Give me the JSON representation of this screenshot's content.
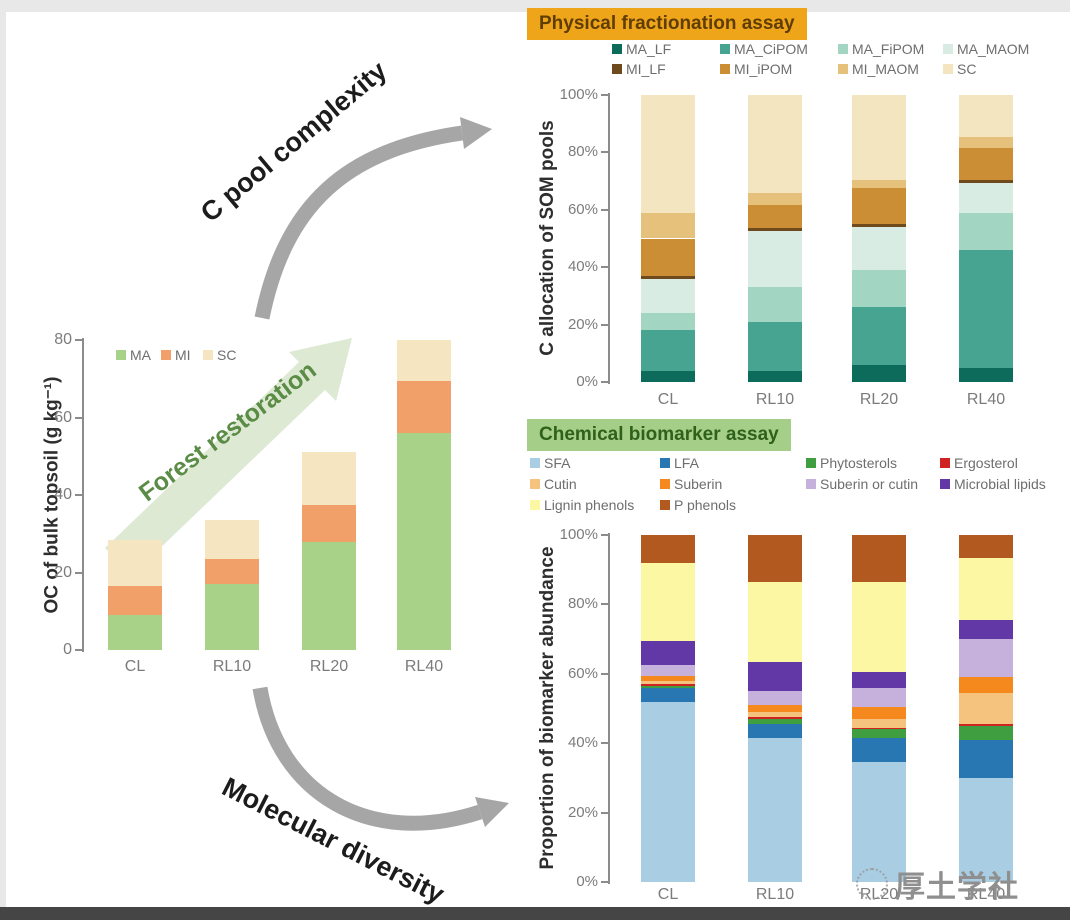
{
  "page": {
    "watermark_text": "厚土学社"
  },
  "annotations": {
    "top_arrow_label": "C pool complexity",
    "restoration_arrow_label": "Forest restoration",
    "bottom_arrow_label": "Molecular diversity"
  },
  "panels": {
    "physical_header": "Physical fractionation assay",
    "chemical_header": "Chemical biomarker assay"
  },
  "colors": {
    "physical_header_bg": "#efa519",
    "physical_header_text": "#5f3d05",
    "chemical_header_bg": "#a5cf88",
    "chemical_header_text": "#2f611c",
    "arrow_grey": "#a6a6a6",
    "restoration_arrow_fill": "#dbe7d0",
    "restoration_text": "#5b8c46",
    "axis": "#8c8c8c",
    "tick_text": "#7c7c7c",
    "watermark": "#8f8f8f"
  },
  "chart_data": [
    {
      "id": "oc_bulk_topsoil",
      "type": "bar",
      "stacked": true,
      "ylabel": "OC of bulk topsoil (g kg⁻¹)",
      "ylim": [
        0,
        80
      ],
      "yticks": [
        "0",
        "20",
        "40",
        "60",
        "80"
      ],
      "categories": [
        "CL",
        "RL10",
        "RL20",
        "RL40"
      ],
      "legend_position": "top-left-inside",
      "series": [
        {
          "name": "MA",
          "color": "#a8d287",
          "values": [
            9,
            17,
            28,
            56
          ]
        },
        {
          "name": "MI",
          "color": "#f2a06a",
          "values": [
            7.5,
            6.5,
            9.5,
            13.5
          ]
        },
        {
          "name": "SC",
          "color": "#f5e5c0",
          "values": [
            12,
            10,
            13.5,
            10.5
          ]
        }
      ]
    },
    {
      "id": "som_pools",
      "type": "bar",
      "stacked": true,
      "ylabel": "C allocation of SOM pools",
      "ylim": [
        0,
        100
      ],
      "yticks": [
        "0%",
        "20%",
        "40%",
        "60%",
        "80%",
        "100%"
      ],
      "categories": [
        "CL",
        "RL10",
        "RL20",
        "RL40"
      ],
      "legend_position": "top",
      "series": [
        {
          "name": "MA_LF",
          "color": "#0d6b5c",
          "values": [
            4,
            4,
            6,
            5
          ]
        },
        {
          "name": "MA_CiPOM",
          "color": "#46a491",
          "values": [
            14,
            17,
            20,
            41
          ]
        },
        {
          "name": "MA_FiPOM",
          "color": "#a2d5c2",
          "values": [
            6,
            12,
            13,
            13
          ]
        },
        {
          "name": "MA_MAOM",
          "color": "#d9ece4",
          "values": [
            12,
            19.5,
            15,
            10.5
          ]
        },
        {
          "name": "MI_LF",
          "color": "#6e4a1c",
          "values": [
            1,
            1,
            1,
            1
          ]
        },
        {
          "name": "MI_iPOM",
          "color": "#cb8e35",
          "values": [
            13,
            8,
            12.5,
            11
          ]
        },
        {
          "name": "MI_MAOM",
          "color": "#e5c17c",
          "values": [
            9,
            4.5,
            3,
            4
          ]
        },
        {
          "name": "SC",
          "color": "#f3e5c0",
          "values": [
            41,
            34,
            29.5,
            14.5
          ]
        }
      ]
    },
    {
      "id": "biomarker_abundance",
      "type": "bar",
      "stacked": true,
      "ylabel": "Proportion of biomarker abundance",
      "ylim": [
        0,
        100
      ],
      "yticks": [
        "0%",
        "20%",
        "40%",
        "60%",
        "80%",
        "100%"
      ],
      "categories": [
        "CL",
        "RL10",
        "RL20",
        "RL40"
      ],
      "legend_position": "top",
      "series": [
        {
          "name": "SFA",
          "color": "#a9cee3",
          "values": [
            52,
            41.5,
            34.5,
            30
          ]
        },
        {
          "name": "LFA",
          "color": "#2877b3",
          "values": [
            4,
            4,
            7,
            11
          ]
        },
        {
          "name": "Phytosterols",
          "color": "#3f9e3f",
          "values": [
            0.5,
            1.5,
            2.5,
            4
          ]
        },
        {
          "name": "Ergosterol",
          "color": "#cf2222",
          "values": [
            0.5,
            0.5,
            0.5,
            0.5
          ]
        },
        {
          "name": "Cutin",
          "color": "#f5c37d",
          "values": [
            1,
            1.5,
            2.5,
            9
          ]
        },
        {
          "name": "Suberin",
          "color": "#f5891d",
          "values": [
            1.5,
            2,
            3.5,
            4.5
          ]
        },
        {
          "name": "Suberin or cutin",
          "color": "#c6b0dc",
          "values": [
            3,
            4,
            5.5,
            11
          ]
        },
        {
          "name": "Microbial lipids",
          "color": "#6138a5",
          "values": [
            7,
            8.5,
            4.5,
            5.5
          ]
        },
        {
          "name": "Lignin phenols",
          "color": "#fbf7a3",
          "values": [
            22.5,
            23,
            26,
            18
          ]
        },
        {
          "name": "P phenols",
          "color": "#b2591f",
          "values": [
            8,
            13.5,
            13.5,
            6.5
          ]
        }
      ]
    }
  ]
}
